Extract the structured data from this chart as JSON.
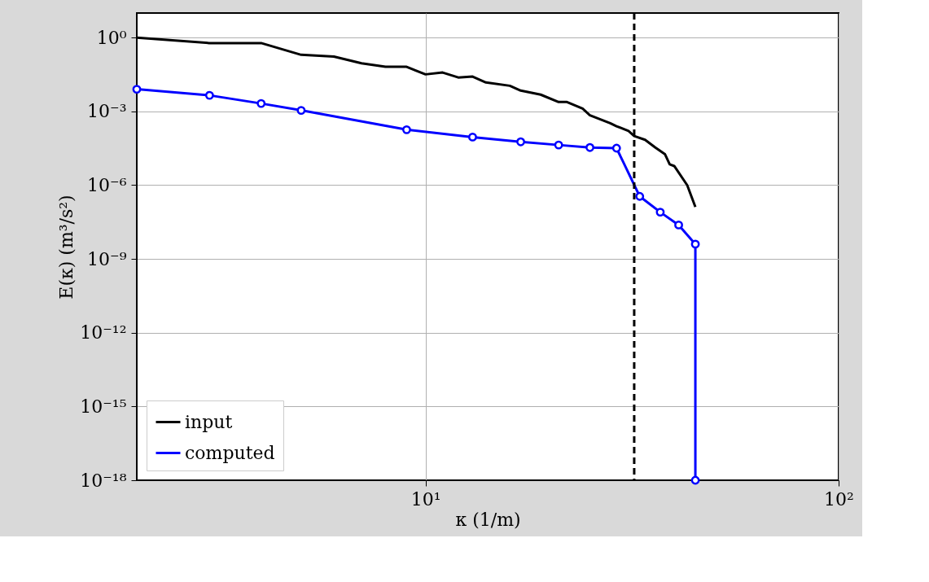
{
  "chart_data": {
    "type": "line",
    "xlabel": "κ (1/m)",
    "ylabel": "E(κ) (m³/s²)",
    "log": "xy",
    "xlim": [
      2,
      100
    ],
    "ylim": [
      1e-18,
      10
    ],
    "xticks": [
      {
        "value": 10,
        "label": "10¹"
      },
      {
        "value": 100,
        "label": "10²"
      }
    ],
    "yticks": [
      {
        "value": 1e-18,
        "label": "10⁻¹⁸"
      },
      {
        "value": 1e-15,
        "label": "10⁻¹⁵"
      },
      {
        "value": 1e-12,
        "label": "10⁻¹²"
      },
      {
        "value": 1e-09,
        "label": "10⁻⁹"
      },
      {
        "value": 1e-06,
        "label": "10⁻⁶"
      },
      {
        "value": 0.001,
        "label": "10⁻³"
      },
      {
        "value": 1,
        "label": "10⁰"
      }
    ],
    "grid": true,
    "legend": "bottom left",
    "line_style": "solid",
    "ref_lines": [
      {
        "axis": "x",
        "value": 32,
        "color": "#000000",
        "line_style": "dashed"
      }
    ],
    "series": [
      {
        "name": "input",
        "color": "#000000",
        "marker": "none",
        "x": [
          2,
          3,
          4,
          5,
          6,
          7,
          8,
          9,
          10,
          11,
          12,
          13,
          14,
          16,
          17,
          19,
          21,
          22,
          24,
          25,
          28,
          29,
          31,
          32,
          34,
          36,
          38,
          39,
          40,
          43,
          45
        ],
        "values": [
          1.0,
          0.6,
          0.6,
          0.2,
          0.17,
          0.09,
          0.065,
          0.065,
          0.032,
          0.038,
          0.024,
          0.026,
          0.015,
          0.011,
          0.007,
          0.0048,
          0.0024,
          0.0024,
          0.0013,
          0.0007,
          0.00033,
          0.00025,
          0.00016,
          0.0001,
          7e-05,
          3.4e-05,
          1.8e-05,
          7e-06,
          6e-06,
          1e-06,
          1.3e-07
        ]
      },
      {
        "name": "computed",
        "color": "#0000ff",
        "marker": "circle",
        "x": [
          2,
          3,
          4,
          5,
          9,
          13,
          17,
          21,
          25,
          29,
          33,
          37,
          41,
          45,
          45
        ],
        "values": [
          0.008,
          0.0045,
          0.0021,
          0.0011,
          0.00018,
          9e-05,
          5.8e-05,
          4.3e-05,
          3.4e-05,
          3.2e-05,
          3.5e-07,
          8e-08,
          2.4e-08,
          4e-09,
          1e-18
        ]
      }
    ]
  }
}
